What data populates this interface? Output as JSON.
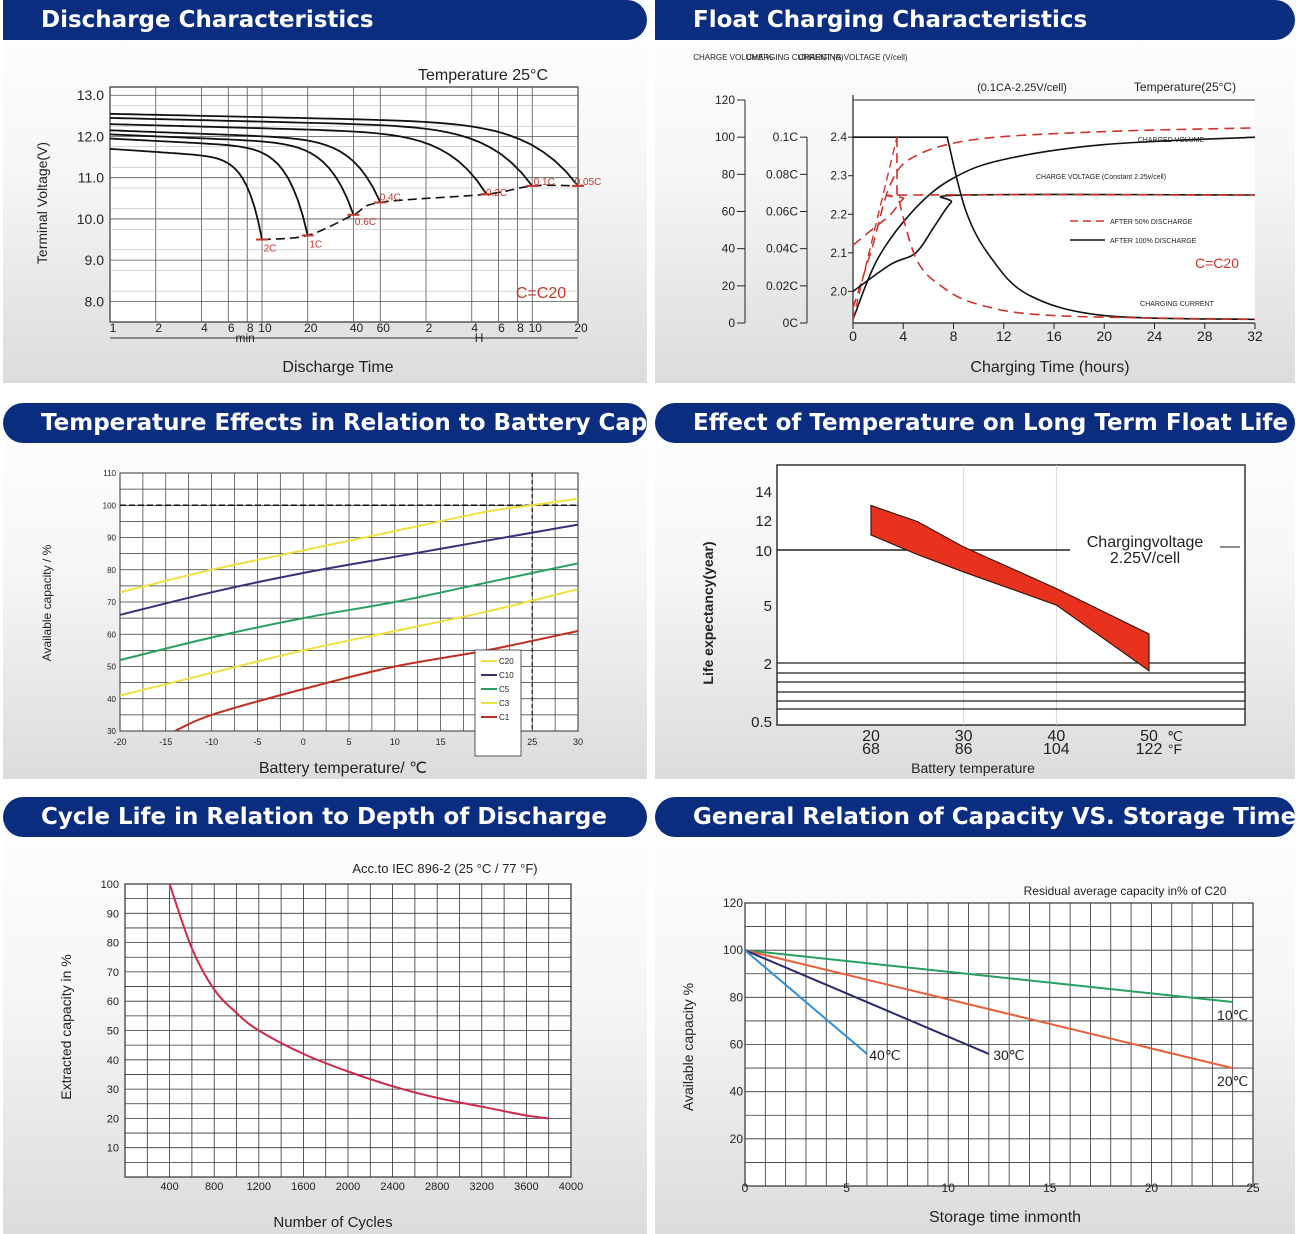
{
  "chart_data": [
    {
      "type": "line",
      "title": "Discharge Characteristics",
      "xlabel": "Discharge Time",
      "ylabel": "Terminal Voltage(V)",
      "annotation": "Temperature 25°C",
      "note": "C=C20",
      "y_ticks": [
        "13.0",
        "12.0",
        "11.0",
        "10.0",
        "9.0",
        "8.0"
      ],
      "ylim": [
        7.5,
        13.2
      ],
      "x_tick_labels": [
        "1",
        "2",
        "4",
        "6",
        "8",
        "10",
        "20",
        "40",
        "60",
        "2",
        "4",
        "6",
        "8",
        "10",
        "20"
      ],
      "x_unit_labels": [
        "min",
        "H"
      ],
      "series": [
        {
          "name": "2C",
          "end_x_minutes": 10,
          "start_v": 11.7,
          "end_v": 9.5
        },
        {
          "name": "1C",
          "end_x_minutes": 20,
          "start_v": 11.95,
          "end_v": 9.6
        },
        {
          "name": "0.6C",
          "end_x_minutes": 40,
          "start_v": 12.05,
          "end_v": 10.1
        },
        {
          "name": "0.4C",
          "end_x_minutes": 60,
          "start_v": 12.15,
          "end_v": 10.4
        },
        {
          "name": "0.2C",
          "end_x_minutes": 300,
          "start_v": 12.3,
          "end_v": 10.6
        },
        {
          "name": "0.1C",
          "end_x_minutes": 600,
          "start_v": 12.45,
          "end_v": 10.8
        },
        {
          "name": "0.05C",
          "end_x_minutes": 1200,
          "start_v": 12.55,
          "end_v": 10.8
        }
      ],
      "labels": [
        "2C",
        "1C",
        "0.6C",
        "0.4C",
        "0.2C",
        "0.1C",
        "0.05C"
      ]
    },
    {
      "type": "line",
      "title": "Float Charging Characteristics",
      "xlabel": "Charging Time (hours)",
      "axis_titles": [
        "CHARGE VOLUME %",
        "CHARGING CURRENT (A)",
        "CHARGING VOLTAGE (V/cell)"
      ],
      "annotation_1": "(0.1CA-2.25V/cell)",
      "annotation_2": "Temperature(25°C)",
      "note": "C=C20",
      "volume_ticks": [
        "120",
        "100",
        "80",
        "60",
        "40",
        "20",
        "0"
      ],
      "current_ticks": [
        "0.1C",
        "0.08C",
        "0.06C",
        "0.04C",
        "0.02C",
        "0C"
      ],
      "voltage_ticks": [
        "2.4",
        "2.3",
        "2.2",
        "2.1",
        "2.0"
      ],
      "x_ticks": [
        "0",
        "4",
        "8",
        "12",
        "16",
        "20",
        "24",
        "28",
        "32"
      ],
      "curve_labels": [
        "CHARGED VOLUME",
        "CHARGE VOLTAGE (Constant 2.25v/cell)",
        "CHARGING CURRENT"
      ],
      "legend": [
        "AFTER 50% DISCHARGE",
        "AFTER 100% DISCHARGE"
      ]
    },
    {
      "type": "line",
      "title": "Temperature Effects in Relation to Battery Capacity",
      "xlabel": "Battery temperature/ ℃",
      "ylabel": "Available capacity / %",
      "x_ticks": [
        -20,
        -15,
        -10,
        -5,
        0,
        5,
        10,
        15,
        20,
        25,
        30
      ],
      "y_ticks": [
        30,
        40,
        50,
        60,
        70,
        80,
        90,
        100,
        110
      ],
      "xlim": [
        -20,
        30
      ],
      "ylim": [
        30,
        110
      ],
      "series": [
        {
          "name": "C20",
          "color": "#f0e040",
          "x": [
            -20,
            -10,
            0,
            10,
            20,
            25,
            30
          ],
          "values": [
            73,
            80,
            86,
            92,
            98,
            100,
            102
          ]
        },
        {
          "name": "C10",
          "color": "#3a2f7a",
          "x": [
            -20,
            -10,
            0,
            10,
            20,
            30
          ],
          "values": [
            66,
            73,
            79,
            84,
            89,
            94
          ]
        },
        {
          "name": "C5",
          "color": "#27a060",
          "x": [
            -20,
            -10,
            0,
            10,
            20,
            30
          ],
          "values": [
            52,
            59,
            65,
            70,
            76,
            82
          ]
        },
        {
          "name": "C3",
          "color": "#f0e040",
          "x": [
            -20,
            -10,
            0,
            10,
            20,
            30
          ],
          "values": [
            41,
            48,
            55,
            61,
            67,
            74
          ]
        },
        {
          "name": "C1",
          "color": "#c03020",
          "x": [
            -14,
            -10,
            0,
            10,
            20,
            30
          ],
          "values": [
            30,
            35,
            43,
            50,
            55,
            61
          ]
        }
      ]
    },
    {
      "type": "area",
      "title": "Effect of Temperature on Long Term Float Life",
      "xlabel": "Battery temperature",
      "ylabel": "Life expectancy(year)",
      "annotation": "Chargingvoltage 2.25V/cell",
      "y_ticks": [
        "14",
        "12",
        "10",
        "5",
        "2",
        "0.5"
      ],
      "x_ticks_c": [
        "20",
        "30",
        "40",
        "50"
      ],
      "x_ticks_f": [
        "68",
        "86",
        "104",
        "122"
      ],
      "unit_c": "℃",
      "unit_f": "°F",
      "band_color": "#e8321e",
      "band_upper": {
        "x": [
          20,
          25,
          30,
          40,
          50
        ],
        "values": [
          13,
          11.9,
          10.2,
          6.5,
          3.5
        ]
      },
      "band_lower": {
        "x": [
          20,
          25,
          30,
          40,
          50
        ],
        "values": [
          11,
          9.6,
          8,
          5,
          1.8
        ]
      }
    },
    {
      "type": "line",
      "title": "Cycle Life in Relation to Depth of Discharge",
      "xlabel": "Number of Cycles",
      "ylabel": "Extracted capacity in %",
      "annotation": "Acc.to IEC 896-2 (25 °C / 77 °F)",
      "x_ticks": [
        400,
        800,
        1200,
        1600,
        2000,
        2400,
        2800,
        3200,
        3600,
        4000
      ],
      "y_ticks": [
        10,
        20,
        30,
        40,
        50,
        60,
        70,
        80,
        90,
        100
      ],
      "xlim": [
        0,
        4000
      ],
      "ylim": [
        0,
        100
      ],
      "series": [
        {
          "name": "",
          "color": "#cc2a4a",
          "x": [
            400,
            600,
            800,
            1000,
            1200,
            1600,
            2000,
            2400,
            2800,
            3200,
            3600,
            3800
          ],
          "values": [
            100,
            78,
            64,
            56,
            50,
            42,
            36,
            31,
            27,
            24,
            21,
            20
          ]
        }
      ]
    },
    {
      "type": "line",
      "title": "General Relation of Capacity VS. Storage Time",
      "xlabel": "Storage time inmonth",
      "ylabel": "Available capacity %",
      "annotation": "Residual average capacity in% of C20",
      "x_ticks": [
        0,
        5,
        10,
        15,
        20,
        25
      ],
      "y_ticks": [
        20,
        40,
        60,
        80,
        100,
        120
      ],
      "xlim": [
        0,
        25
      ],
      "ylim": [
        0,
        120
      ],
      "series": [
        {
          "name": "10℃",
          "color": "#27a060",
          "x": [
            0,
            24
          ],
          "values": [
            100,
            78
          ]
        },
        {
          "name": "20℃",
          "color": "#e8603a",
          "x": [
            0,
            24
          ],
          "values": [
            100,
            50
          ]
        },
        {
          "name": "30℃",
          "color": "#2a2a6a",
          "x": [
            0,
            12
          ],
          "values": [
            100,
            56
          ]
        },
        {
          "name": "40℃",
          "color": "#2f8fd8",
          "x": [
            0,
            6
          ],
          "values": [
            100,
            56
          ]
        }
      ]
    }
  ]
}
